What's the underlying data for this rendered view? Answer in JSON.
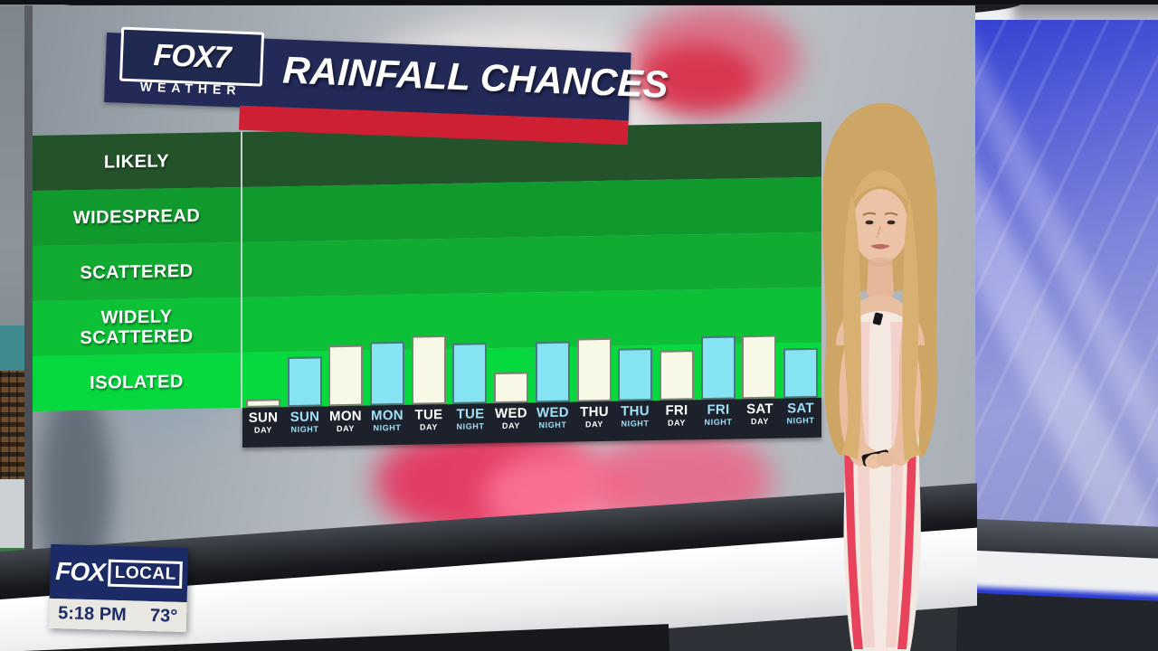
{
  "header": {
    "logo_line1": "FOX7",
    "logo_line2": "WEATHER",
    "title": "RAINFALL CHANCES",
    "banner_color": "#232a58",
    "accent_bar_color": "#cf2033"
  },
  "chart_data": {
    "type": "bar",
    "title": "RAINFALL CHANCES",
    "y_axis_categories_top_to_bottom": [
      "LIKELY",
      "WIDESPREAD",
      "SCATTERED",
      "WIDELY SCATTERED",
      "ISOLATED"
    ],
    "band_colors_top_to_bottom": [
      "#24522a",
      "#109a2d",
      "#11ab31",
      "#0cc136",
      "#06d93e"
    ],
    "x_categories": [
      {
        "day": "SUN",
        "period": "DAY"
      },
      {
        "day": "SUN",
        "period": "NIGHT"
      },
      {
        "day": "MON",
        "period": "DAY"
      },
      {
        "day": "MON",
        "period": "NIGHT"
      },
      {
        "day": "TUE",
        "period": "DAY"
      },
      {
        "day": "TUE",
        "period": "NIGHT"
      },
      {
        "day": "WED",
        "period": "DAY"
      },
      {
        "day": "WED",
        "period": "NIGHT"
      },
      {
        "day": "THU",
        "period": "DAY"
      },
      {
        "day": "THU",
        "period": "NIGHT"
      },
      {
        "day": "FRI",
        "period": "DAY"
      },
      {
        "day": "FRI",
        "period": "NIGHT"
      },
      {
        "day": "SAT",
        "period": "DAY"
      },
      {
        "day": "SAT",
        "period": "NIGHT"
      }
    ],
    "series": [
      {
        "name": "rainfall-chance-level",
        "values": [
          0.15,
          0.9,
          1.1,
          1.15,
          1.25,
          1.1,
          0.55,
          1.1,
          1.15,
          0.95,
          0.9,
          1.15,
          1.15,
          0.9
        ]
      }
    ],
    "value_scale_note": "category band units: 1.0 = top of ISOLATED band, 2.0 = top of WIDELY SCATTERED band",
    "ylim": [
      0,
      5
    ],
    "grid": false,
    "legend": false,
    "day_bar_color": "#f8f8e6",
    "night_bar_color": "#86e3f2",
    "day_label_color": "#ffffff",
    "night_label_color": "#9fe0f6"
  },
  "badge": {
    "fox": "FOX",
    "local": "LOCAL",
    "time": "5:18 PM",
    "temp": "73°"
  }
}
